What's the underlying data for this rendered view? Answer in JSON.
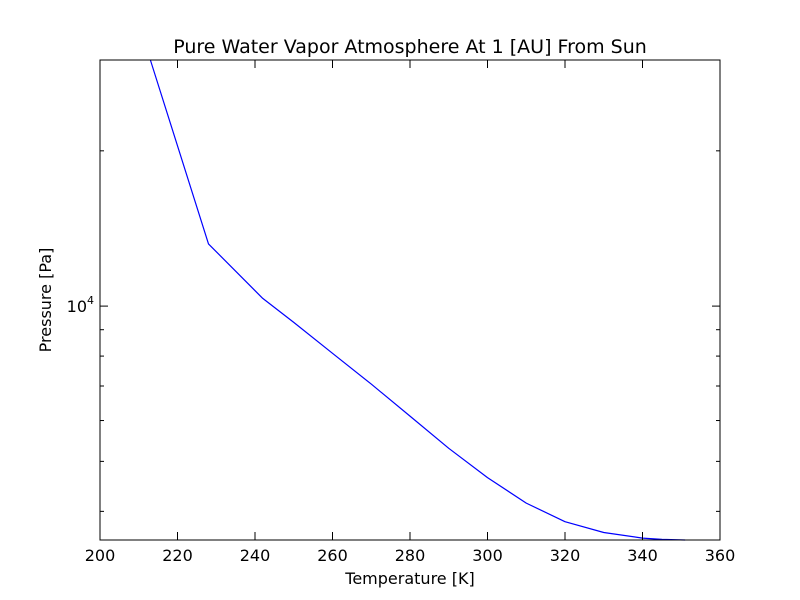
{
  "chart_data": {
    "type": "line",
    "title": "Pure Water Vapor Atmosphere At 1 [AU] From Sun",
    "xlabel": "Temperature [K]",
    "ylabel": "Pressure [Pa]",
    "xlim": [
      200,
      360
    ],
    "ylim": [
      3520,
      30000
    ],
    "yscale": "log",
    "grid": false,
    "x_ticks": [
      200,
      220,
      240,
      260,
      280,
      300,
      320,
      340,
      360
    ],
    "y_ticks": [
      {
        "base": "10",
        "exponent": "4",
        "value": 10000
      }
    ],
    "series": [
      {
        "color": "#0000ff",
        "x": [
          213,
          228,
          242,
          250,
          260,
          270,
          280,
          290,
          300,
          310,
          320,
          330,
          340,
          345,
          351
        ],
        "y": [
          30000,
          13200,
          10350,
          9300,
          8100,
          7060,
          6120,
          5300,
          4650,
          4150,
          3820,
          3640,
          3550,
          3530,
          3520
        ]
      }
    ]
  }
}
